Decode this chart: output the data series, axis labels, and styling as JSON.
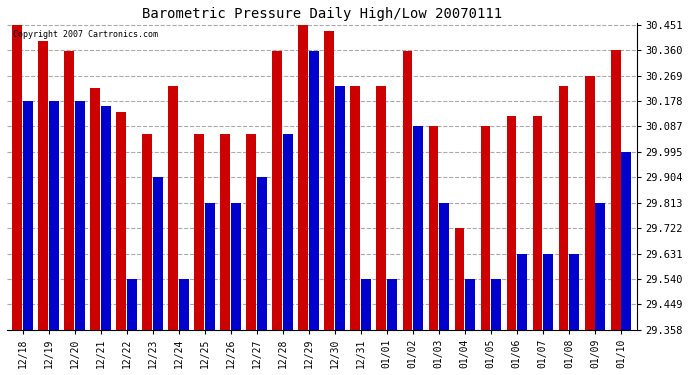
{
  "title": "Barometric Pressure Daily High/Low 20070111",
  "copyright": "Copyright 2007 Cartronics.com",
  "dates": [
    "12/18",
    "12/19",
    "12/20",
    "12/21",
    "12/22",
    "12/23",
    "12/24",
    "12/25",
    "12/26",
    "12/27",
    "12/28",
    "12/29",
    "12/30",
    "12/31",
    "01/01",
    "01/02",
    "01/03",
    "01/04",
    "01/05",
    "01/06",
    "01/07",
    "01/08",
    "01/09",
    "01/10"
  ],
  "highs": [
    30.451,
    30.393,
    30.356,
    30.224,
    30.139,
    30.06,
    30.232,
    30.06,
    30.06,
    30.06,
    30.356,
    30.451,
    30.43,
    30.232,
    30.232,
    30.356,
    30.087,
    29.724,
    30.087,
    30.124,
    30.124,
    30.232,
    30.269,
    30.36
  ],
  "lows": [
    30.178,
    30.178,
    30.178,
    30.16,
    29.54,
    29.904,
    29.54,
    29.813,
    29.813,
    29.904,
    30.06,
    30.356,
    30.232,
    29.54,
    29.54,
    30.087,
    29.813,
    29.54,
    29.54,
    29.631,
    29.631,
    29.631,
    29.813,
    29.995
  ],
  "high_color": "#cc0000",
  "low_color": "#0000cc",
  "bg_color": "#ffffff",
  "plot_bg_color": "#ffffff",
  "grid_color": "#aaaaaa",
  "ymin": 29.358,
  "ymax": 30.451,
  "yticks": [
    29.358,
    29.449,
    29.54,
    29.631,
    29.722,
    29.813,
    29.904,
    29.995,
    30.087,
    30.178,
    30.269,
    30.36,
    30.451
  ]
}
